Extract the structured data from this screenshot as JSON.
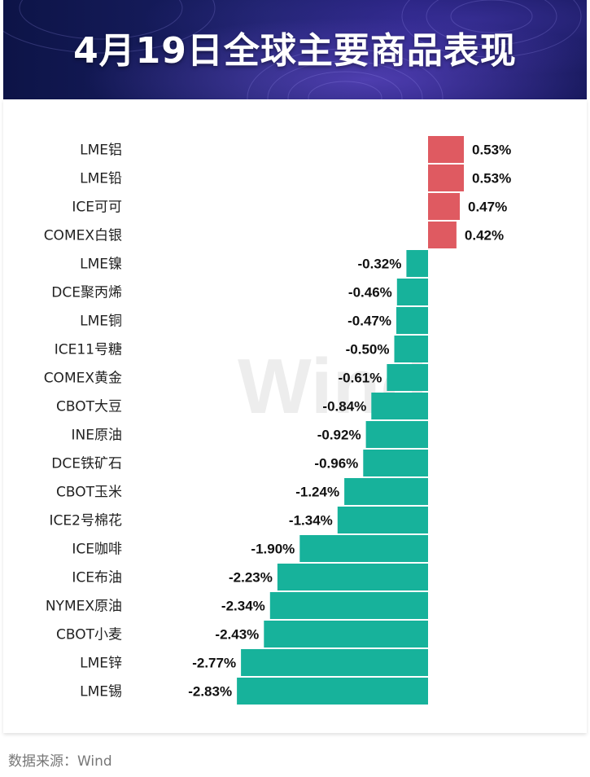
{
  "header": {
    "title": "4月19日全球主要商品表现"
  },
  "footer": {
    "source": "数据来源：Wind"
  },
  "watermark": "Wind",
  "colors": {
    "positive": "#df5a61",
    "negative": "#17b29b",
    "label": "#222222"
  },
  "chart_data": {
    "type": "bar",
    "orientation": "horizontal",
    "unit": "%",
    "categories": [
      "LME铝",
      "LME铅",
      "ICE可可",
      "COMEX白银",
      "LME镍",
      "DCE聚丙烯",
      "LME铜",
      "ICE11号糖",
      "COMEX黄金",
      "CBOT大豆",
      "INE原油",
      "DCE铁矿石",
      "CBOT玉米",
      "ICE2号棉花",
      "ICE咖啡",
      "ICE布油",
      "NYMEX原油",
      "CBOT小麦",
      "LME锌",
      "LME锡"
    ],
    "values": [
      0.53,
      0.53,
      0.47,
      0.42,
      -0.32,
      -0.46,
      -0.47,
      -0.5,
      -0.61,
      -0.84,
      -0.92,
      -0.96,
      -1.24,
      -1.34,
      -1.9,
      -2.23,
      -2.34,
      -2.43,
      -2.77,
      -2.83
    ],
    "data_labels": [
      "0.53%",
      "0.53%",
      "0.47%",
      "0.42%",
      "-0.32%",
      "-0.46%",
      "-0.47%",
      "-0.50%",
      "-0.61%",
      "-0.84%",
      "-0.92%",
      "-0.96%",
      "-1.24%",
      "-1.34%",
      "-1.90%",
      "-2.23%",
      "-2.34%",
      "-2.43%",
      "-2.77%",
      "-2.83%"
    ],
    "xlim": [
      -2.83,
      0.53
    ],
    "grid": false,
    "legend": "none"
  }
}
